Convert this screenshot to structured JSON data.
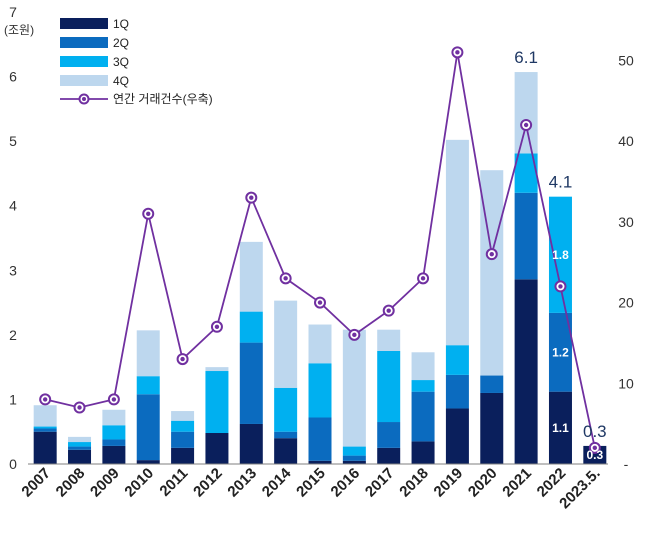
{
  "chart_data": {
    "type": "bar",
    "stacked": true,
    "y_unit_label": "(조원)",
    "categories": [
      "2007",
      "2008",
      "2009",
      "2010",
      "2011",
      "2012",
      "2013",
      "2014",
      "2015",
      "2016",
      "2017",
      "2018",
      "2019",
      "2020",
      "2021",
      "2022",
      "2023.5."
    ],
    "series": [
      {
        "name": "1Q",
        "color": "#0a1f5c",
        "values": [
          0.5,
          0.22,
          0.28,
          0.06,
          0.25,
          0.48,
          0.62,
          0.4,
          0.05,
          0.05,
          0.25,
          0.35,
          0.86,
          1.1,
          2.86,
          1.12,
          0.28
        ]
      },
      {
        "name": "2Q",
        "color": "#0b6bbf",
        "values": [
          0.05,
          0.05,
          0.1,
          1.02,
          0.25,
          0.0,
          1.26,
          0.1,
          0.67,
          0.08,
          0.4,
          0.77,
          0.52,
          0.27,
          1.34,
          1.22,
          0.0
        ]
      },
      {
        "name": "3Q",
        "color": "#00b0f0",
        "values": [
          0.03,
          0.07,
          0.22,
          0.28,
          0.17,
          0.96,
          0.48,
          0.68,
          0.84,
          0.14,
          1.1,
          0.18,
          0.46,
          0.0,
          0.61,
          1.8,
          0.0
        ]
      },
      {
        "name": "4Q",
        "color": "#bdd7ee",
        "values": [
          0.33,
          0.08,
          0.24,
          0.71,
          0.15,
          0.06,
          1.08,
          1.35,
          0.6,
          1.81,
          0.33,
          0.43,
          3.18,
          3.18,
          1.26,
          0.0,
          0.0
        ]
      }
    ],
    "line_series": {
      "name": "연간 거래건수(우축)",
      "color": "#7030a0",
      "axis": "right",
      "values": [
        8,
        7,
        8,
        31,
        13,
        17,
        33,
        23,
        20,
        16,
        19,
        23,
        51,
        26,
        42,
        22,
        2
      ]
    },
    "ylim": [
      0,
      7
    ],
    "yticks": [
      "0",
      "1",
      "2",
      "3",
      "4",
      "5",
      "6",
      "7"
    ],
    "y2lim": [
      0,
      56
    ],
    "y2ticks": [
      "-",
      "10",
      "20",
      "30",
      "40",
      "50"
    ],
    "total_labels": [
      {
        "index": 14,
        "text": "6.1"
      },
      {
        "index": 15,
        "text": "4.1"
      },
      {
        "index": 16,
        "text": "0.3"
      }
    ],
    "inbar_labels": [
      {
        "index": 15,
        "series": 0,
        "text": "1.1"
      },
      {
        "index": 15,
        "series": 1,
        "text": "1.2"
      },
      {
        "index": 15,
        "series": 2,
        "text": "1.8"
      },
      {
        "index": 16,
        "series": 0,
        "text": "0.3"
      }
    ],
    "legend_position": "top-left",
    "grid": false
  }
}
